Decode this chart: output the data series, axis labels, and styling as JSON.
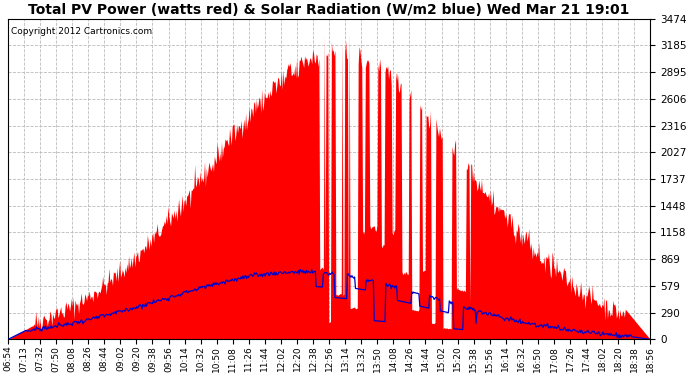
{
  "title": "Total PV Power (watts red) & Solar Radiation (W/m2 blue) Wed Mar 21 19:01",
  "copyright": "Copyright 2012 Cartronics.com",
  "yticks": [
    0.0,
    289.5,
    579.1,
    868.6,
    1158.1,
    1447.6,
    1737.2,
    2026.7,
    2316.2,
    2605.7,
    2895.3,
    3184.8,
    3474.3
  ],
  "ymax": 3474.3,
  "ymin": 0.0,
  "bg_color": "#ffffff",
  "plot_bg_color": "#ffffff",
  "grid_color": "#bbbbbb",
  "red_color": "#ff0000",
  "blue_color": "#0000cc",
  "title_fontsize": 10,
  "x_tick_fontsize": 6.5,
  "y_tick_fontsize": 7.5,
  "xtick_labels": [
    "06:54",
    "07:13",
    "07:32",
    "07:50",
    "08:08",
    "08:26",
    "08:44",
    "09:02",
    "09:20",
    "09:38",
    "09:56",
    "10:14",
    "10:32",
    "10:50",
    "11:08",
    "11:26",
    "11:44",
    "12:02",
    "12:20",
    "12:38",
    "12:56",
    "13:14",
    "13:32",
    "13:50",
    "14:08",
    "14:26",
    "14:44",
    "15:02",
    "15:20",
    "15:38",
    "15:56",
    "16:14",
    "16:32",
    "16:50",
    "17:08",
    "17:26",
    "17:44",
    "18:02",
    "18:20",
    "18:38",
    "18:56"
  ]
}
